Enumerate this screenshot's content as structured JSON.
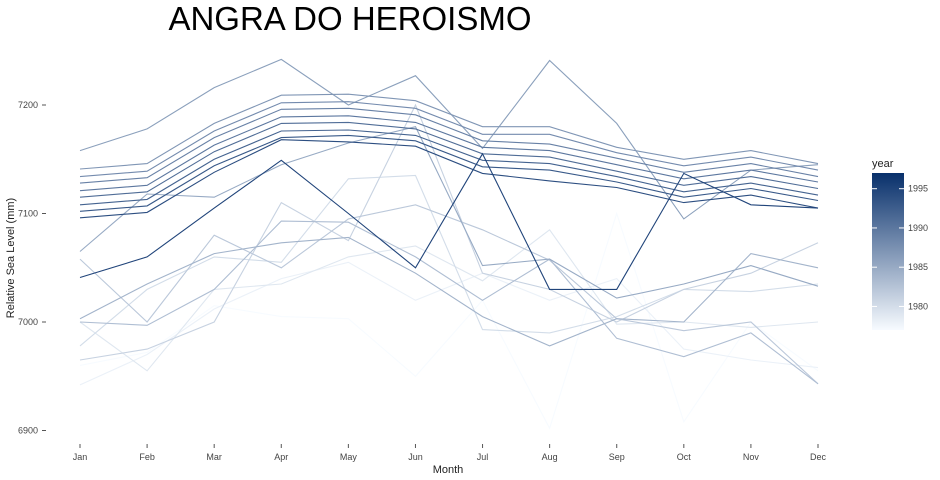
{
  "chart_data": {
    "type": "line",
    "title": "ANGRA DO HEROISMO",
    "xlabel": "Month",
    "ylabel": "Relative Sea Level (mm)",
    "categories": [
      "Jan",
      "Feb",
      "Mar",
      "Apr",
      "May",
      "Jun",
      "Jul",
      "Aug",
      "Sep",
      "Oct",
      "Nov",
      "Dec"
    ],
    "ylim": [
      6880,
      7250
    ],
    "yticks": [
      6900,
      7000,
      7100,
      7200
    ],
    "grid": false,
    "legend": {
      "title": "year",
      "placement": "right",
      "range": [
        1977,
        1997
      ],
      "ticks": [
        1980,
        1985,
        1990,
        1995
      ],
      "color_low": "#f7fbff",
      "color_high": "#08306b"
    },
    "series": [
      {
        "year": 1977,
        "values": [
          6960,
          6972,
          7015,
          7005,
          7003,
          6950,
          7020,
          6902,
          7100,
          6908,
          7000,
          6955
        ]
      },
      {
        "year": 1978,
        "values": [
          6942,
          6970,
          7012,
          7040,
          7055,
          7020,
          7045,
          7020,
          7040,
          6975,
          6965,
          6958
        ]
      },
      {
        "year": 1979,
        "values": [
          7000,
          6955,
          7030,
          7035,
          7060,
          7070,
          7038,
          7085,
          6998,
          7000,
          6995,
          7000
        ]
      },
      {
        "year": 1980,
        "values": [
          6978,
          7030,
          7060,
          7055,
          7132,
          7135,
          6993,
          6990,
          7005,
          7030,
          7028,
          7035
        ]
      },
      {
        "year": 1981,
        "values": [
          6965,
          6975,
          7000,
          7110,
          7075,
          7200,
          7045,
          7030,
          7000,
          7030,
          7045,
          7073
        ]
      },
      {
        "year": 1982,
        "values": [
          7058,
          7000,
          7080,
          7050,
          7095,
          7108,
          7085,
          7057,
          7003,
          6992,
          7000,
          6943
        ]
      },
      {
        "year": 1983,
        "values": [
          7000,
          6997,
          7030,
          7093,
          7092,
          7060,
          7020,
          7058,
          6985,
          6968,
          6990,
          6943
        ]
      },
      {
        "year": 1984,
        "values": [
          7003,
          7035,
          7063,
          7073,
          7078,
          7045,
          7005,
          6978,
          7003,
          7000,
          7063,
          7050
        ]
      },
      {
        "year": 1985,
        "values": [
          7065,
          7118,
          7115,
          7145,
          7165,
          7180,
          7052,
          7058,
          7022,
          7035,
          7052,
          7033
        ]
      },
      {
        "year": 1986,
        "values": [
          7158,
          7178,
          7216,
          7242,
          7200,
          7227,
          7160,
          7241,
          7183,
          7095,
          7140,
          7145
        ]
      },
      {
        "year": 1987,
        "values": [
          7141,
          7146,
          7183,
          7209,
          7210,
          7204,
          7180,
          7180,
          7161,
          7150,
          7158,
          7146
        ]
      },
      {
        "year": 1988,
        "values": [
          7134,
          7139,
          7176,
          7202,
          7203,
          7197,
          7173,
          7173,
          7156,
          7144,
          7152,
          7140
        ]
      },
      {
        "year": 1989,
        "values": [
          7128,
          7133,
          7170,
          7196,
          7197,
          7191,
          7167,
          7164,
          7151,
          7138,
          7146,
          7134
        ]
      },
      {
        "year": 1990,
        "values": [
          7121,
          7126,
          7163,
          7189,
          7190,
          7184,
          7161,
          7158,
          7145,
          7132,
          7140,
          7129
        ]
      },
      {
        "year": 1991,
        "values": [
          7115,
          7120,
          7157,
          7183,
          7184,
          7178,
          7155,
          7152,
          7139,
          7126,
          7134,
          7123
        ]
      },
      {
        "year": 1992,
        "values": [
          7108,
          7113,
          7150,
          7176,
          7177,
          7172,
          7149,
          7146,
          7134,
          7120,
          7128,
          7117
        ]
      },
      {
        "year": 1993,
        "values": [
          7102,
          7107,
          7144,
          7170,
          7172,
          7167,
          7143,
          7140,
          7129,
          7115,
          7123,
          7112
        ]
      },
      {
        "year": 1994,
        "values": [
          7096,
          7101,
          7138,
          7168,
          7166,
          7162,
          7137,
          7130,
          7124,
          7110,
          7117,
          7105
        ]
      },
      {
        "year": 1995,
        "values": [
          7041,
          7060,
          7105,
          7149,
          7100,
          7050,
          7155,
          7030,
          7030,
          7137,
          7108,
          7105
        ]
      }
    ]
  }
}
